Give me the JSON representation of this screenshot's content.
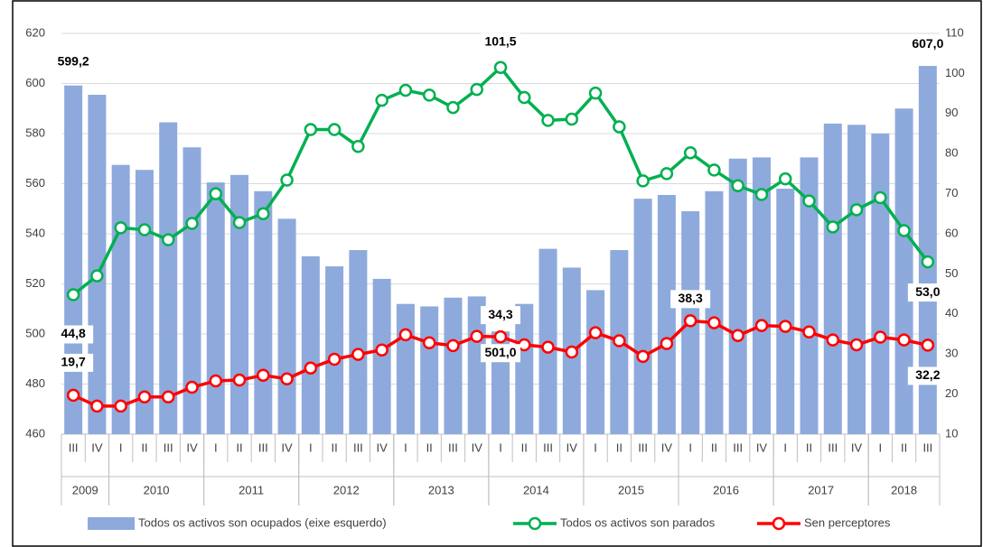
{
  "chart_data": {
    "type": "combo",
    "categories": [
      "III",
      "IV",
      "I",
      "II",
      "III",
      "IV",
      "I",
      "II",
      "III",
      "IV",
      "I",
      "II",
      "III",
      "IV",
      "I",
      "II",
      "III",
      "IV",
      "I",
      "II",
      "III",
      "IV",
      "I",
      "II",
      "III",
      "IV",
      "I",
      "II",
      "III",
      "IV",
      "I",
      "II",
      "III",
      "IV",
      "I",
      "II",
      "III"
    ],
    "years": [
      "2009",
      "2010",
      "2011",
      "2012",
      "2013",
      "2014",
      "2015",
      "2016",
      "2017",
      "2018"
    ],
    "series": [
      {
        "name": "Todos os activos son ocupados (eixe esquerdo)",
        "type": "bar",
        "color": "#8eaadc",
        "values": [
          599.2,
          595.5,
          567.5,
          565.5,
          584.5,
          574.5,
          560.5,
          563.5,
          557,
          546,
          531,
          527,
          533.5,
          522,
          512,
          511,
          514.5,
          515,
          501.0,
          512,
          534,
          526.5,
          517.5,
          533.5,
          554,
          555.5,
          549,
          557,
          570,
          570.5,
          558,
          570.5,
          584,
          583.5,
          580,
          590,
          607.0
        ],
        "value_labels": [
          "599,2",
          null,
          null,
          null,
          null,
          null,
          null,
          null,
          null,
          null,
          null,
          null,
          null,
          null,
          null,
          null,
          null,
          null,
          "501,0",
          null,
          null,
          null,
          null,
          null,
          null,
          null,
          null,
          null,
          null,
          null,
          null,
          null,
          null,
          null,
          null,
          null,
          "607,0"
        ]
      },
      {
        "name": "Todos os activos son parados",
        "type": "line",
        "axis": "y2",
        "color": "#00b050",
        "values": [
          44.8,
          49.5,
          61.5,
          61,
          58.5,
          62.6,
          70,
          62.8,
          65,
          73.4,
          86,
          86,
          81.8,
          93.3,
          95.8,
          94.6,
          91.5,
          96,
          101.5,
          94,
          88.3,
          88.6,
          95.1,
          86.7,
          73.2,
          75,
          80.2,
          75.9,
          72,
          69.8,
          73.7,
          68.2,
          61.7,
          66,
          69,
          60.8,
          53.0
        ],
        "value_labels": [
          "44,8",
          null,
          null,
          null,
          null,
          null,
          null,
          null,
          null,
          null,
          null,
          null,
          null,
          null,
          null,
          null,
          null,
          null,
          "101,5",
          null,
          null,
          null,
          null,
          null,
          null,
          null,
          null,
          null,
          null,
          null,
          null,
          null,
          null,
          null,
          null,
          null,
          "53,0"
        ]
      },
      {
        "name": "Sen perceptores",
        "type": "line",
        "axis": "y2",
        "color": "#ff0000",
        "values": [
          19.7,
          17,
          17,
          19.3,
          19.3,
          21.7,
          23.3,
          23.5,
          24.7,
          23.8,
          26.5,
          28.7,
          29.9,
          31,
          34.8,
          32.8,
          32.1,
          34.4,
          34.3,
          32.3,
          31.7,
          30.5,
          35.3,
          33.3,
          29.4,
          32.6,
          38.3,
          37.8,
          34.6,
          37.1,
          36.9,
          35.5,
          33.5,
          32.3,
          34.2,
          33.5,
          32.2
        ],
        "value_labels": [
          "19,7",
          null,
          null,
          null,
          null,
          null,
          null,
          null,
          null,
          null,
          null,
          null,
          null,
          null,
          null,
          null,
          null,
          null,
          "34,3",
          null,
          null,
          null,
          null,
          null,
          null,
          null,
          "38,3",
          null,
          null,
          null,
          null,
          null,
          null,
          null,
          null,
          null,
          "32,2"
        ]
      }
    ],
    "ylim": [
      460,
      620
    ],
    "yticks": [
      460,
      480,
      500,
      520,
      540,
      560,
      580,
      600,
      620
    ],
    "y2lim": [
      10,
      110
    ],
    "y2ticks": [
      10,
      20,
      30,
      40,
      50,
      60,
      70,
      80,
      90,
      100,
      110
    ],
    "grid": true,
    "legend": "bottom"
  }
}
